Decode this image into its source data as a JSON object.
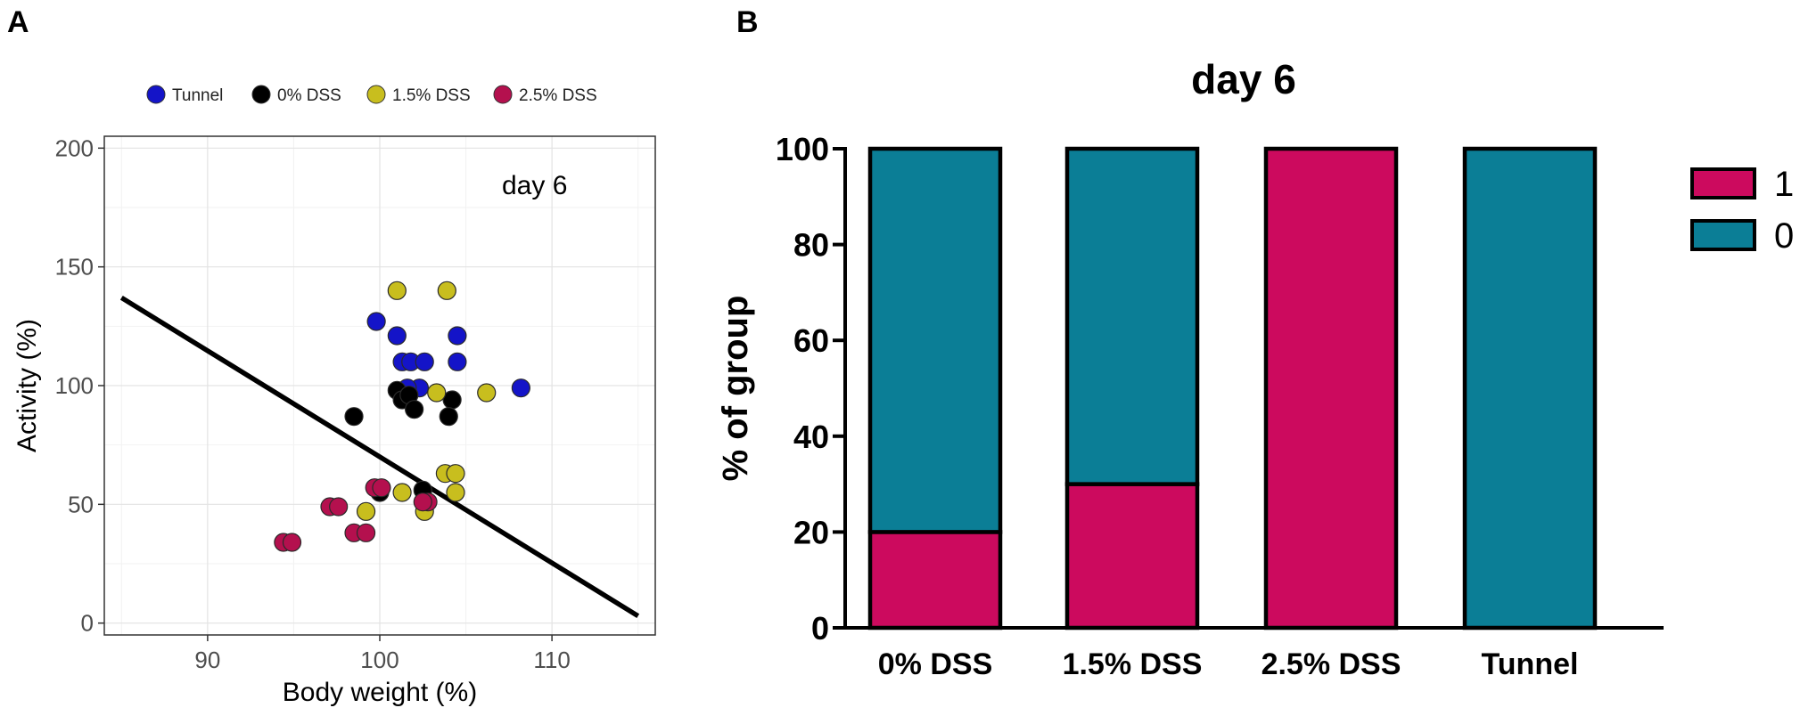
{
  "panel_a": {
    "panel_label": "A",
    "legend": [
      {
        "label": "Tunnel",
        "color": "#1414c8"
      },
      {
        "label": "0% DSS",
        "color": "#000000"
      },
      {
        "label": "1.5% DSS",
        "color": "#c8be1e"
      },
      {
        "label": "2.5% DSS",
        "color": "#b4104e"
      }
    ]
  },
  "panel_b": {
    "panel_label": "B",
    "legend": [
      {
        "label": "1",
        "color": "#cc0a5e"
      },
      {
        "label": "0",
        "color": "#0b7e96"
      }
    ]
  },
  "chart_data": [
    {
      "type": "scatter",
      "title": "",
      "annotation": "day 6",
      "xlabel": "Body weight (%)",
      "ylabel": "Activity (%)",
      "xlim": [
        84,
        116
      ],
      "ylim": [
        -5,
        205
      ],
      "xticks": [
        90,
        100,
        110
      ],
      "yticks": [
        0,
        50,
        100,
        150,
        200
      ],
      "grid": true,
      "legend_position": "top",
      "regression_line": {
        "x": [
          85,
          115
        ],
        "y": [
          137,
          3
        ]
      },
      "series": [
        {
          "name": "Tunnel",
          "color": "#1414c8",
          "points": [
            [
              99.8,
              127
            ],
            [
              101.0,
              121
            ],
            [
              104.5,
              121
            ],
            [
              101.3,
              110
            ],
            [
              101.8,
              110
            ],
            [
              102.6,
              110
            ],
            [
              104.5,
              110
            ],
            [
              102.3,
              99
            ],
            [
              108.2,
              99
            ],
            [
              101.6,
              99
            ]
          ]
        },
        {
          "name": "0% DSS",
          "color": "#000000",
          "points": [
            [
              98.5,
              87
            ],
            [
              101.0,
              98
            ],
            [
              101.3,
              94
            ],
            [
              101.7,
              96
            ],
            [
              102.0,
              90
            ],
            [
              104.2,
              94
            ],
            [
              104.0,
              87
            ],
            [
              102.5,
              56
            ],
            [
              100.0,
              55
            ]
          ]
        },
        {
          "name": "1.5% DSS",
          "color": "#c8be1e",
          "points": [
            [
              101.0,
              140
            ],
            [
              103.9,
              140
            ],
            [
              103.3,
              97
            ],
            [
              106.2,
              97
            ],
            [
              103.8,
              63
            ],
            [
              104.4,
              63
            ],
            [
              101.3,
              55
            ],
            [
              104.4,
              55
            ],
            [
              99.2,
              47
            ],
            [
              102.6,
              47
            ]
          ]
        },
        {
          "name": "2.5% DSS",
          "color": "#b4104e",
          "points": [
            [
              99.7,
              57
            ],
            [
              100.1,
              57
            ],
            [
              102.8,
              51
            ],
            [
              102.5,
              51
            ],
            [
              97.1,
              49
            ],
            [
              97.6,
              49
            ],
            [
              98.5,
              38
            ],
            [
              99.2,
              38
            ],
            [
              94.4,
              34
            ],
            [
              94.9,
              34
            ]
          ]
        }
      ]
    },
    {
      "type": "bar",
      "stacked": true,
      "title": "day 6",
      "xlabel": "",
      "ylabel": "% of group",
      "ylim": [
        0,
        100
      ],
      "yticks": [
        0,
        20,
        40,
        60,
        80,
        100
      ],
      "categories": [
        "0% DSS",
        "1.5% DSS",
        "2.5% DSS",
        "Tunnel"
      ],
      "legend_position": "right",
      "series": [
        {
          "name": "1",
          "color": "#cc0a5e",
          "values": [
            20,
            30,
            100,
            0
          ]
        },
        {
          "name": "0",
          "color": "#0b7e96",
          "values": [
            80,
            70,
            0,
            100
          ]
        }
      ]
    }
  ]
}
